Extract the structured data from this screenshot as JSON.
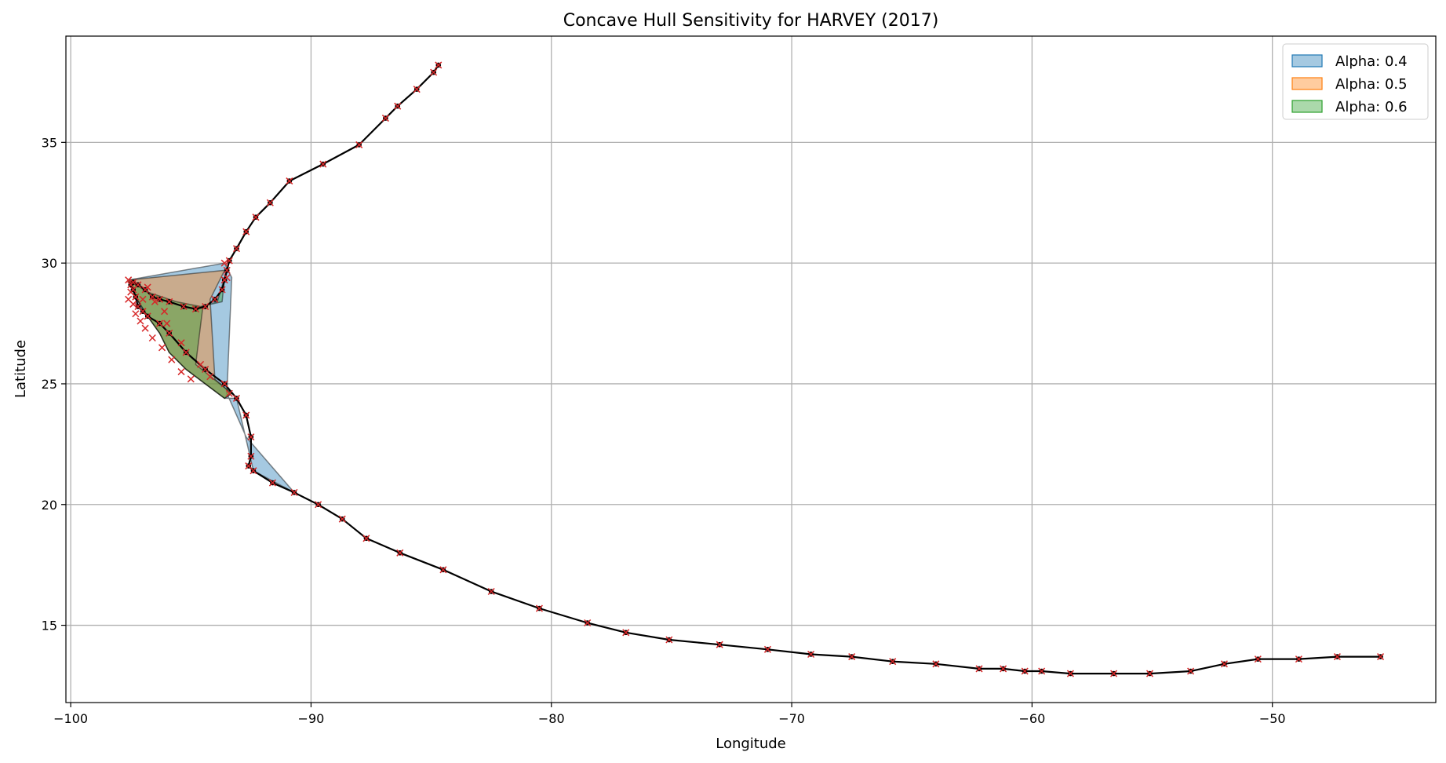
{
  "chart_data": {
    "type": "line",
    "title": "Concave Hull Sensitivity for HARVEY (2017)",
    "xlabel": "Longitude",
    "ylabel": "Latitude",
    "xlim": [
      -100.2,
      -43.2
    ],
    "ylim": [
      11.8,
      39.4
    ],
    "xticks": [
      -100,
      -90,
      -80,
      -70,
      -60,
      -50
    ],
    "yticks": [
      15,
      20,
      25,
      30,
      35
    ],
    "xtick_labels": [
      "−100",
      "−90",
      "−80",
      "−70",
      "−60",
      "−50"
    ],
    "ytick_labels": [
      "15",
      "20",
      "25",
      "30",
      "35"
    ],
    "grid": true,
    "legend_position": "top-right",
    "legend": [
      {
        "label": "Alpha: 0.4",
        "color": "#1f77b4"
      },
      {
        "label": "Alpha: 0.5",
        "color": "#ff7f0e"
      },
      {
        "label": "Alpha: 0.6",
        "color": "#2ca02c"
      }
    ],
    "track": {
      "line_color": "#000000",
      "marker_color": "#d62728",
      "lon": [
        -45.5,
        -47.3,
        -48.9,
        -50.6,
        -52.0,
        -53.4,
        -55.1,
        -56.6,
        -58.4,
        -59.6,
        -60.3,
        -61.2,
        -62.2,
        -64.0,
        -65.8,
        -67.5,
        -69.2,
        -71.0,
        -73.0,
        -75.1,
        -76.9,
        -78.5,
        -80.5,
        -82.5,
        -84.5,
        -86.3,
        -87.7,
        -88.7,
        -89.7,
        -90.7,
        -91.6,
        -92.4,
        -92.6,
        -92.5,
        -92.5,
        -92.7,
        -93.1,
        -93.6,
        -94.4,
        -95.2,
        -95.9,
        -96.3,
        -96.8,
        -97.0,
        -97.2,
        -97.3,
        -97.4,
        -97.5,
        -97.4,
        -97.2,
        -96.9,
        -96.6,
        -96.3,
        -95.9,
        -95.3,
        -94.8,
        -94.4,
        -94.0,
        -93.7,
        -93.6,
        -93.5,
        -93.4,
        -93.1,
        -92.7,
        -92.3,
        -91.7,
        -90.9,
        -89.5,
        -88.0,
        -86.9,
        -86.4,
        -85.6,
        -84.9,
        -84.7
      ],
      "lat": [
        13.7,
        13.7,
        13.6,
        13.6,
        13.4,
        13.1,
        13.0,
        13.0,
        13.0,
        13.1,
        13.1,
        13.2,
        13.2,
        13.4,
        13.5,
        13.7,
        13.8,
        14.0,
        14.2,
        14.4,
        14.7,
        15.1,
        15.7,
        16.4,
        17.3,
        18.0,
        18.6,
        19.4,
        20.0,
        20.5,
        20.9,
        21.4,
        21.6,
        22.0,
        22.8,
        23.7,
        24.4,
        25.0,
        25.6,
        26.3,
        27.1,
        27.5,
        27.8,
        28.0,
        28.2,
        28.6,
        28.9,
        29.1,
        29.2,
        29.1,
        28.9,
        28.6,
        28.5,
        28.4,
        28.2,
        28.1,
        28.2,
        28.5,
        28.9,
        29.3,
        29.7,
        30.1,
        30.6,
        31.3,
        31.9,
        32.5,
        33.4,
        34.1,
        34.9,
        36.0,
        36.5,
        37.2,
        37.9,
        38.2
      ]
    },
    "extra_markers": {
      "lon": [
        -97.4,
        -97.3,
        -97.1,
        -96.9,
        -96.6,
        -96.2,
        -95.8,
        -95.4,
        -95.0,
        -94.6,
        -94.2,
        -93.4,
        -96.0,
        -95.4,
        -96.1,
        -96.5,
        -97.0,
        -96.8,
        -97.5,
        -97.6,
        -97.6,
        -93.6,
        -93.5
      ],
      "lat": [
        28.3,
        27.9,
        27.6,
        27.3,
        26.9,
        26.5,
        26.0,
        25.5,
        25.2,
        25.8,
        25.3,
        24.6,
        27.5,
        26.7,
        28.0,
        28.4,
        28.5,
        29.0,
        28.8,
        28.5,
        29.3,
        30.0,
        29.4
      ]
    },
    "hulls": [
      {
        "label": "Alpha: 0.4",
        "color": "#1f77b4",
        "lon": [
          -97.6,
          -93.6,
          -93.3,
          -93.5,
          -93.1,
          -92.7,
          -90.7,
          -92.4,
          -93.1,
          -93.6,
          -94.4,
          -95.2,
          -95.9,
          -96.3,
          -96.8,
          -97.0,
          -97.3,
          -97.5,
          -97.6
        ],
        "lat": [
          29.3,
          30.0,
          29.4,
          24.6,
          23.7,
          22.8,
          20.5,
          21.4,
          24.4,
          24.4,
          25.0,
          25.6,
          26.3,
          27.1,
          27.8,
          28.0,
          28.6,
          29.1,
          29.3
        ]
      },
      {
        "label": "Alpha: 0.5",
        "color": "#ff7f0e",
        "lon": [
          -97.6,
          -93.6,
          -94.2,
          -94.0,
          -93.3,
          -93.6,
          -94.4,
          -95.2,
          -95.9,
          -96.3,
          -96.8,
          -97.3,
          -97.6
        ],
        "lat": [
          29.3,
          29.7,
          28.5,
          25.2,
          24.6,
          24.4,
          25.0,
          25.6,
          26.3,
          27.1,
          27.8,
          28.6,
          29.3
        ]
      },
      {
        "label": "Alpha: 0.6",
        "color": "#2ca02c",
        "lon": [
          -97.6,
          -96.8,
          -95.6,
          -94.6,
          -93.7,
          -93.6,
          -93.9,
          -94.5,
          -94.8,
          -93.3,
          -93.6,
          -94.4,
          -95.2,
          -95.9,
          -96.3,
          -96.8,
          -97.3,
          -97.6
        ],
        "lat": [
          29.3,
          28.8,
          28.4,
          28.2,
          28.4,
          29.4,
          28.4,
          28.2,
          25.8,
          24.6,
          24.4,
          25.0,
          25.6,
          26.3,
          27.1,
          27.8,
          28.6,
          29.3
        ]
      }
    ]
  }
}
